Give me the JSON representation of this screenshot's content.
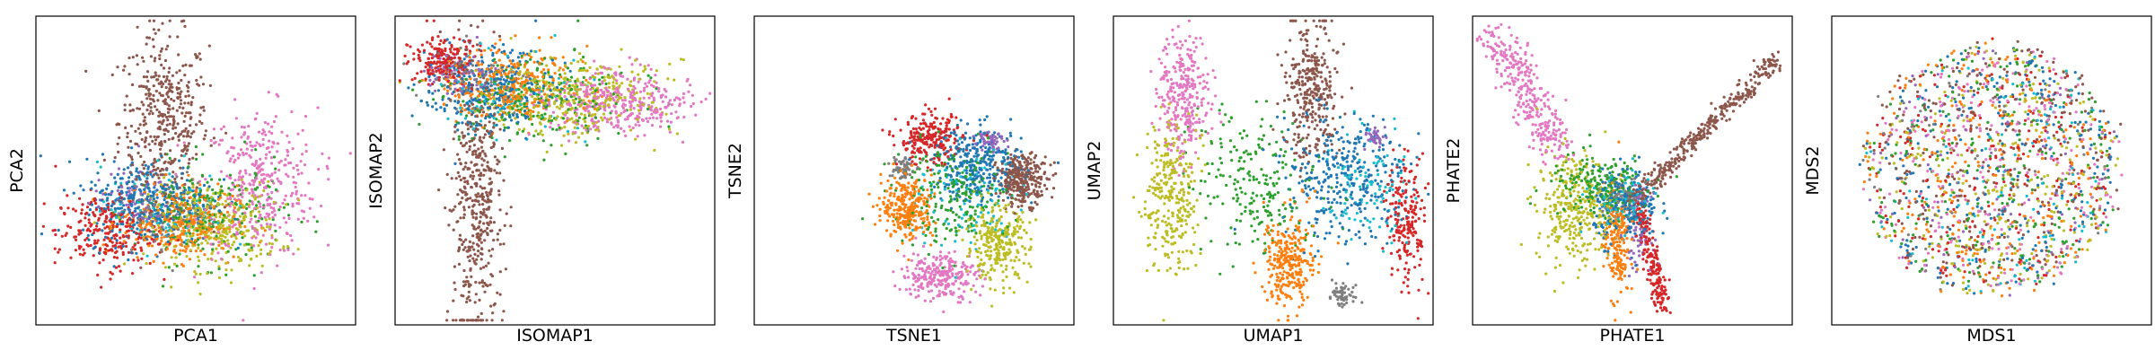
{
  "palette": [
    "#1f77b4",
    "#ff7f0e",
    "#2ca02c",
    "#d62728",
    "#9467bd",
    "#8c564b",
    "#e377c2",
    "#7f7f7f",
    "#bcbd22",
    "#17becf"
  ],
  "chart_data": [
    {
      "type": "scatter",
      "xlabel": "PCA1",
      "ylabel": "PCA2",
      "xlim": [
        0,
        1
      ],
      "ylim": [
        0,
        1
      ],
      "grid": false,
      "clusters": [
        {
          "color": "#8c564b",
          "cx": 0.4,
          "cy": 0.66,
          "sx": 0.07,
          "sy": 0.14,
          "n": 420
        },
        {
          "color": "#e377c2",
          "cx": 0.7,
          "cy": 0.46,
          "sx": 0.09,
          "sy": 0.12,
          "n": 360
        },
        {
          "color": "#bcbd22",
          "cx": 0.56,
          "cy": 0.32,
          "sx": 0.1,
          "sy": 0.07,
          "n": 320
        },
        {
          "color": "#2ca02c",
          "cx": 0.55,
          "cy": 0.36,
          "sx": 0.12,
          "sy": 0.08,
          "n": 220
        },
        {
          "color": "#ff7f0e",
          "cx": 0.45,
          "cy": 0.33,
          "sx": 0.09,
          "sy": 0.06,
          "n": 300
        },
        {
          "color": "#1f77b4",
          "cx": 0.35,
          "cy": 0.4,
          "sx": 0.1,
          "sy": 0.07,
          "n": 360
        },
        {
          "color": "#d62728",
          "cx": 0.22,
          "cy": 0.3,
          "sx": 0.08,
          "sy": 0.06,
          "n": 260
        },
        {
          "color": "#9467bd",
          "cx": 0.3,
          "cy": 0.4,
          "sx": 0.06,
          "sy": 0.05,
          "n": 80
        },
        {
          "color": "#17becf",
          "cx": 0.4,
          "cy": 0.38,
          "sx": 0.1,
          "sy": 0.07,
          "n": 80
        },
        {
          "color": "#7f7f7f",
          "cx": 0.42,
          "cy": 0.36,
          "sx": 0.08,
          "sy": 0.06,
          "n": 60
        }
      ]
    },
    {
      "type": "scatter",
      "xlabel": "ISOMAP1",
      "ylabel": "ISOMAP2",
      "xlim": [
        0,
        1
      ],
      "ylim": [
        0,
        1
      ],
      "grid": false,
      "clusters": [
        {
          "color": "#8c564b",
          "cx": 0.25,
          "cy": 0.4,
          "sx": 0.04,
          "sy": 0.22,
          "n": 460
        },
        {
          "color": "#e377c2",
          "cx": 0.7,
          "cy": 0.72,
          "sx": 0.12,
          "sy": 0.05,
          "n": 360
        },
        {
          "color": "#bcbd22",
          "cx": 0.55,
          "cy": 0.74,
          "sx": 0.14,
          "sy": 0.06,
          "n": 360
        },
        {
          "color": "#ff7f0e",
          "cx": 0.35,
          "cy": 0.78,
          "sx": 0.1,
          "sy": 0.06,
          "n": 320
        },
        {
          "color": "#2ca02c",
          "cx": 0.45,
          "cy": 0.73,
          "sx": 0.14,
          "sy": 0.07,
          "n": 220
        },
        {
          "color": "#1f77b4",
          "cx": 0.3,
          "cy": 0.76,
          "sx": 0.1,
          "sy": 0.07,
          "n": 300
        },
        {
          "color": "#d62728",
          "cx": 0.15,
          "cy": 0.86,
          "sx": 0.05,
          "sy": 0.04,
          "n": 200
        },
        {
          "color": "#9467bd",
          "cx": 0.2,
          "cy": 0.82,
          "sx": 0.05,
          "sy": 0.04,
          "n": 80
        },
        {
          "color": "#17becf",
          "cx": 0.35,
          "cy": 0.75,
          "sx": 0.12,
          "sy": 0.07,
          "n": 80
        },
        {
          "color": "#7f7f7f",
          "cx": 0.25,
          "cy": 0.8,
          "sx": 0.08,
          "sy": 0.05,
          "n": 60
        }
      ]
    },
    {
      "type": "scatter",
      "xlabel": "TSNE1",
      "ylabel": "TSNE2",
      "xlim": [
        0,
        1
      ],
      "ylim": [
        0,
        1
      ],
      "grid": false,
      "clusters": [
        {
          "color": "#8c564b",
          "cx": 0.84,
          "cy": 0.47,
          "sx": 0.04,
          "sy": 0.04,
          "n": 300
        },
        {
          "color": "#e377c2",
          "cx": 0.58,
          "cy": 0.16,
          "sx": 0.06,
          "sy": 0.04,
          "n": 260
        },
        {
          "color": "#bcbd22",
          "cx": 0.76,
          "cy": 0.26,
          "sx": 0.05,
          "sy": 0.06,
          "n": 280
        },
        {
          "color": "#ff7f0e",
          "cx": 0.48,
          "cy": 0.38,
          "sx": 0.04,
          "sy": 0.05,
          "n": 280
        },
        {
          "color": "#d62728",
          "cx": 0.55,
          "cy": 0.6,
          "sx": 0.05,
          "sy": 0.04,
          "n": 240
        },
        {
          "color": "#1f77b4",
          "cx": 0.7,
          "cy": 0.52,
          "sx": 0.07,
          "sy": 0.06,
          "n": 300
        },
        {
          "color": "#2ca02c",
          "cx": 0.62,
          "cy": 0.42,
          "sx": 0.09,
          "sy": 0.08,
          "n": 220
        },
        {
          "color": "#9467bd",
          "cx": 0.74,
          "cy": 0.6,
          "sx": 0.02,
          "sy": 0.02,
          "n": 60
        },
        {
          "color": "#7f7f7f",
          "cx": 0.46,
          "cy": 0.51,
          "sx": 0.02,
          "sy": 0.02,
          "n": 60
        },
        {
          "color": "#17becf",
          "cx": 0.66,
          "cy": 0.4,
          "sx": 0.09,
          "sy": 0.09,
          "n": 100
        }
      ]
    },
    {
      "type": "scatter",
      "xlabel": "UMAP1",
      "ylabel": "UMAP2",
      "xlim": [
        0,
        1
      ],
      "ylim": [
        0,
        1
      ],
      "grid": false,
      "clusters": [
        {
          "color": "#e377c2",
          "cx": 0.22,
          "cy": 0.74,
          "sx": 0.04,
          "sy": 0.1,
          "n": 300
        },
        {
          "color": "#bcbd22",
          "cx": 0.18,
          "cy": 0.42,
          "sx": 0.04,
          "sy": 0.12,
          "n": 300
        },
        {
          "color": "#8c564b",
          "cx": 0.62,
          "cy": 0.76,
          "sx": 0.04,
          "sy": 0.11,
          "n": 320
        },
        {
          "color": "#ff7f0e",
          "cx": 0.55,
          "cy": 0.2,
          "sx": 0.04,
          "sy": 0.08,
          "n": 280
        },
        {
          "color": "#1f77b4",
          "cx": 0.72,
          "cy": 0.48,
          "sx": 0.1,
          "sy": 0.1,
          "n": 340
        },
        {
          "color": "#d62728",
          "cx": 0.92,
          "cy": 0.33,
          "sx": 0.03,
          "sy": 0.1,
          "n": 200
        },
        {
          "color": "#2ca02c",
          "cx": 0.45,
          "cy": 0.45,
          "sx": 0.1,
          "sy": 0.12,
          "n": 220
        },
        {
          "color": "#9467bd",
          "cx": 0.82,
          "cy": 0.61,
          "sx": 0.015,
          "sy": 0.015,
          "n": 40
        },
        {
          "color": "#7f7f7f",
          "cx": 0.72,
          "cy": 0.1,
          "sx": 0.02,
          "sy": 0.02,
          "n": 60
        },
        {
          "color": "#17becf",
          "cx": 0.8,
          "cy": 0.45,
          "sx": 0.06,
          "sy": 0.08,
          "n": 100
        }
      ]
    },
    {
      "type": "scatter",
      "xlabel": "PHATE1",
      "ylabel": "PHATE2",
      "xlim": [
        0,
        1
      ],
      "ylim": [
        0,
        1
      ],
      "grid": false,
      "clusters": [
        {
          "color": "#e377c2",
          "from": [
            0.07,
            0.95
          ],
          "to": [
            0.28,
            0.55
          ],
          "spread": 0.03,
          "n": 320
        },
        {
          "color": "#8c564b",
          "from": [
            0.5,
            0.4
          ],
          "to": [
            0.95,
            0.86
          ],
          "spread": 0.015,
          "n": 360
        },
        {
          "color": "#bcbd22",
          "cx": 0.32,
          "cy": 0.38,
          "sx": 0.06,
          "sy": 0.09,
          "n": 320
        },
        {
          "color": "#ff7f0e",
          "cx": 0.45,
          "cy": 0.27,
          "sx": 0.02,
          "sy": 0.09,
          "n": 200
        },
        {
          "color": "#d62728",
          "from": [
            0.52,
            0.38
          ],
          "to": [
            0.6,
            0.05
          ],
          "spread": 0.015,
          "n": 200
        },
        {
          "color": "#1f77b4",
          "cx": 0.48,
          "cy": 0.38,
          "sx": 0.05,
          "sy": 0.06,
          "n": 220
        },
        {
          "color": "#2ca02c",
          "cx": 0.4,
          "cy": 0.45,
          "sx": 0.08,
          "sy": 0.05,
          "n": 200
        },
        {
          "color": "#9467bd",
          "cx": 0.52,
          "cy": 0.3,
          "sx": 0.02,
          "sy": 0.06,
          "n": 60
        },
        {
          "color": "#7f7f7f",
          "cx": 0.47,
          "cy": 0.42,
          "sx": 0.03,
          "sy": 0.03,
          "n": 60
        },
        {
          "color": "#17becf",
          "cx": 0.46,
          "cy": 0.4,
          "sx": 0.05,
          "sy": 0.05,
          "n": 80
        }
      ]
    },
    {
      "type": "scatter",
      "xlabel": "MDS1",
      "ylabel": "MDS2",
      "xlim": [
        0,
        1
      ],
      "ylim": [
        0,
        1
      ],
      "grid": false,
      "clusters": [
        {
          "color": "#8c564b",
          "disk": [
            0.5,
            0.52,
            0.4
          ],
          "n": 260
        },
        {
          "color": "#e377c2",
          "disk": [
            0.5,
            0.5,
            0.4
          ],
          "n": 260
        },
        {
          "color": "#bcbd22",
          "disk": [
            0.5,
            0.5,
            0.4
          ],
          "n": 260
        },
        {
          "color": "#ff7f0e",
          "disk": [
            0.5,
            0.5,
            0.4
          ],
          "n": 260
        },
        {
          "color": "#1f77b4",
          "disk": [
            0.5,
            0.5,
            0.4
          ],
          "n": 260
        },
        {
          "color": "#2ca02c",
          "disk": [
            0.5,
            0.5,
            0.4
          ],
          "n": 220
        },
        {
          "color": "#d62728",
          "disk": [
            0.5,
            0.5,
            0.4
          ],
          "n": 220
        },
        {
          "color": "#9467bd",
          "disk": [
            0.5,
            0.5,
            0.4
          ],
          "n": 80
        },
        {
          "color": "#7f7f7f",
          "disk": [
            0.5,
            0.5,
            0.4
          ],
          "n": 80
        },
        {
          "color": "#17becf",
          "disk": [
            0.5,
            0.5,
            0.4
          ],
          "n": 100
        }
      ]
    }
  ]
}
